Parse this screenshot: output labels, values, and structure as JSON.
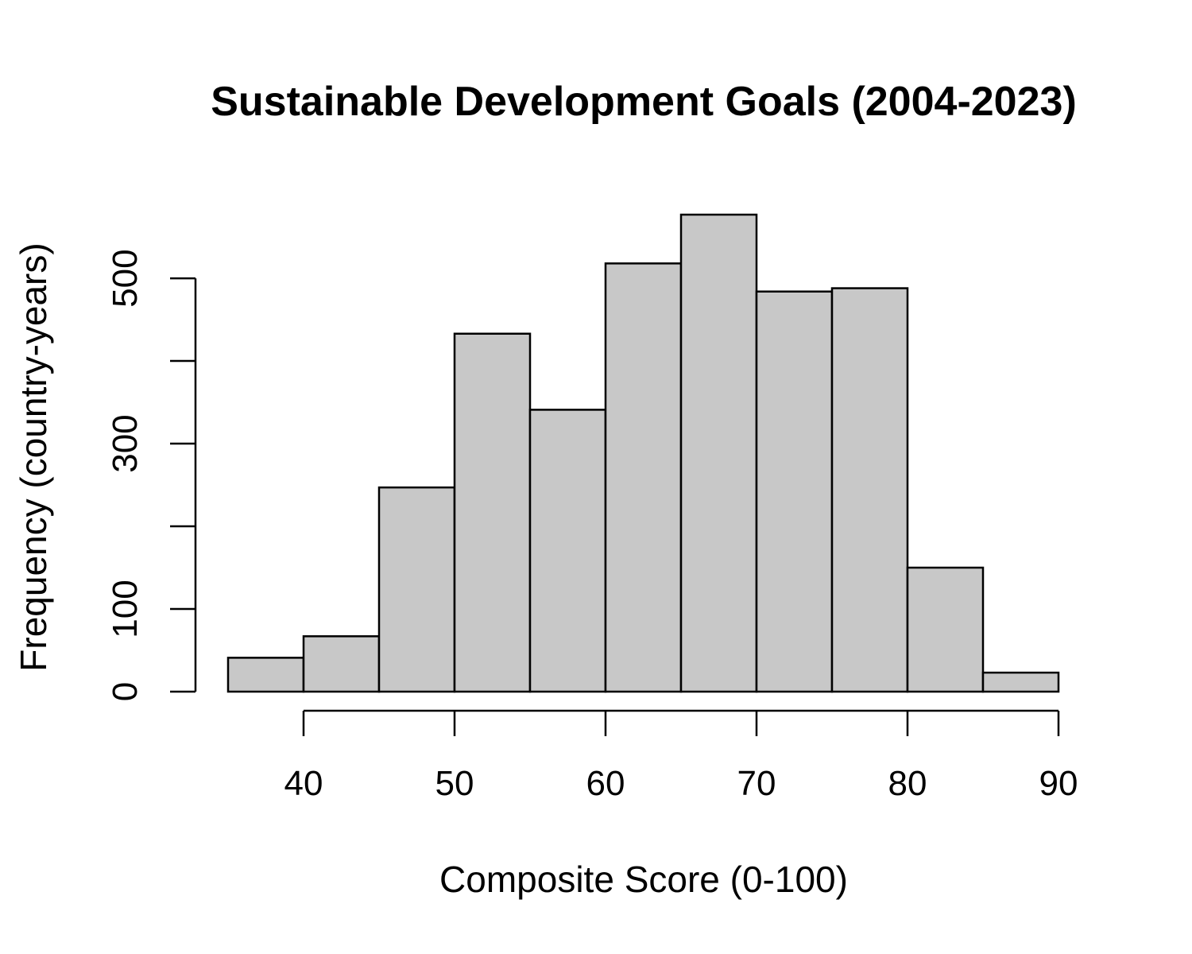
{
  "chart_data": {
    "type": "bar",
    "subtype": "histogram",
    "title": "Sustainable Development Goals (2004-2023)",
    "xlabel": "Composite Score (0-100)",
    "ylabel": "Frequency (country-years)",
    "bin_edges": [
      35,
      40,
      45,
      50,
      55,
      60,
      65,
      70,
      75,
      80,
      85,
      90
    ],
    "values": [
      41,
      67,
      247,
      433,
      341,
      518,
      577,
      484,
      488,
      150,
      23
    ],
    "xlim": [
      35,
      90
    ],
    "ylim": [
      0,
      577
    ],
    "x_ticks": [
      40,
      50,
      60,
      70,
      80,
      90
    ],
    "y_ticks": [
      0,
      100,
      200,
      300,
      400,
      500
    ],
    "y_tick_labels": [
      "0",
      "100",
      "",
      "300",
      "",
      "500"
    ],
    "grid": false,
    "legend": "none",
    "colors": {
      "bar_fill": "#c8c8c8",
      "bar_stroke": "#000000"
    }
  }
}
